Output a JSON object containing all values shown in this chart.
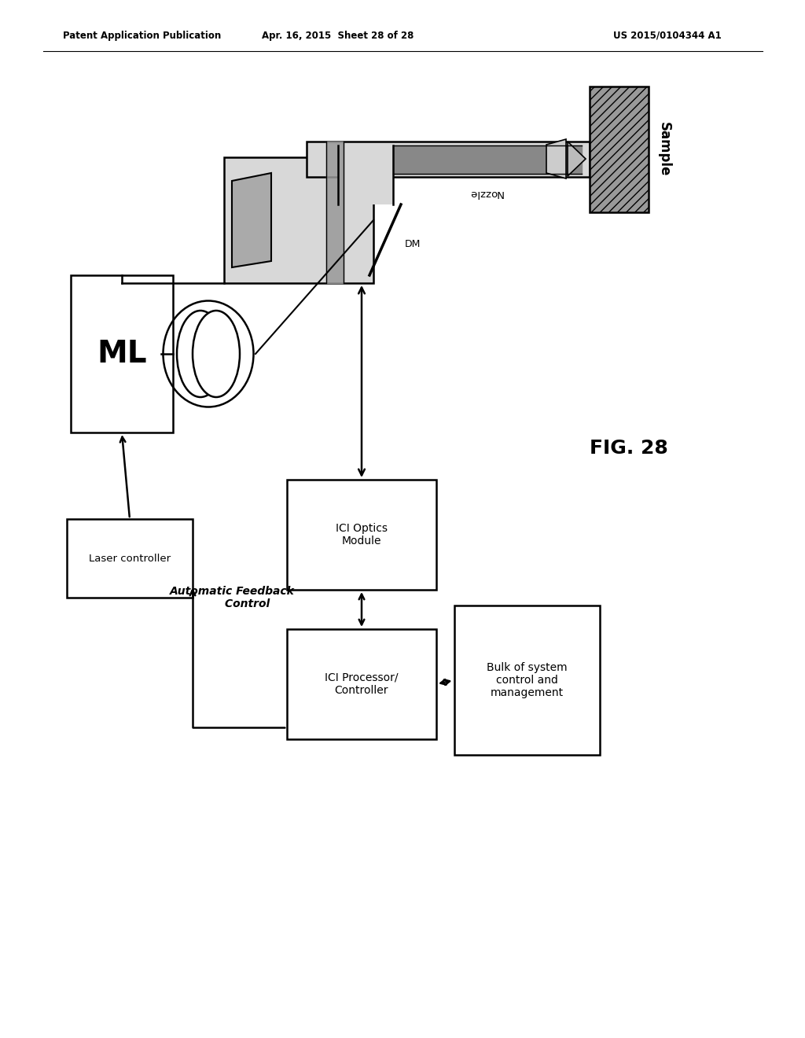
{
  "header_left": "Patent Application Publication",
  "header_center": "Apr. 16, 2015  Sheet 28 of 28",
  "header_right": "US 2015/0104344 A1",
  "figure_label": "FIG. 28",
  "bg_color": "#ffffff"
}
